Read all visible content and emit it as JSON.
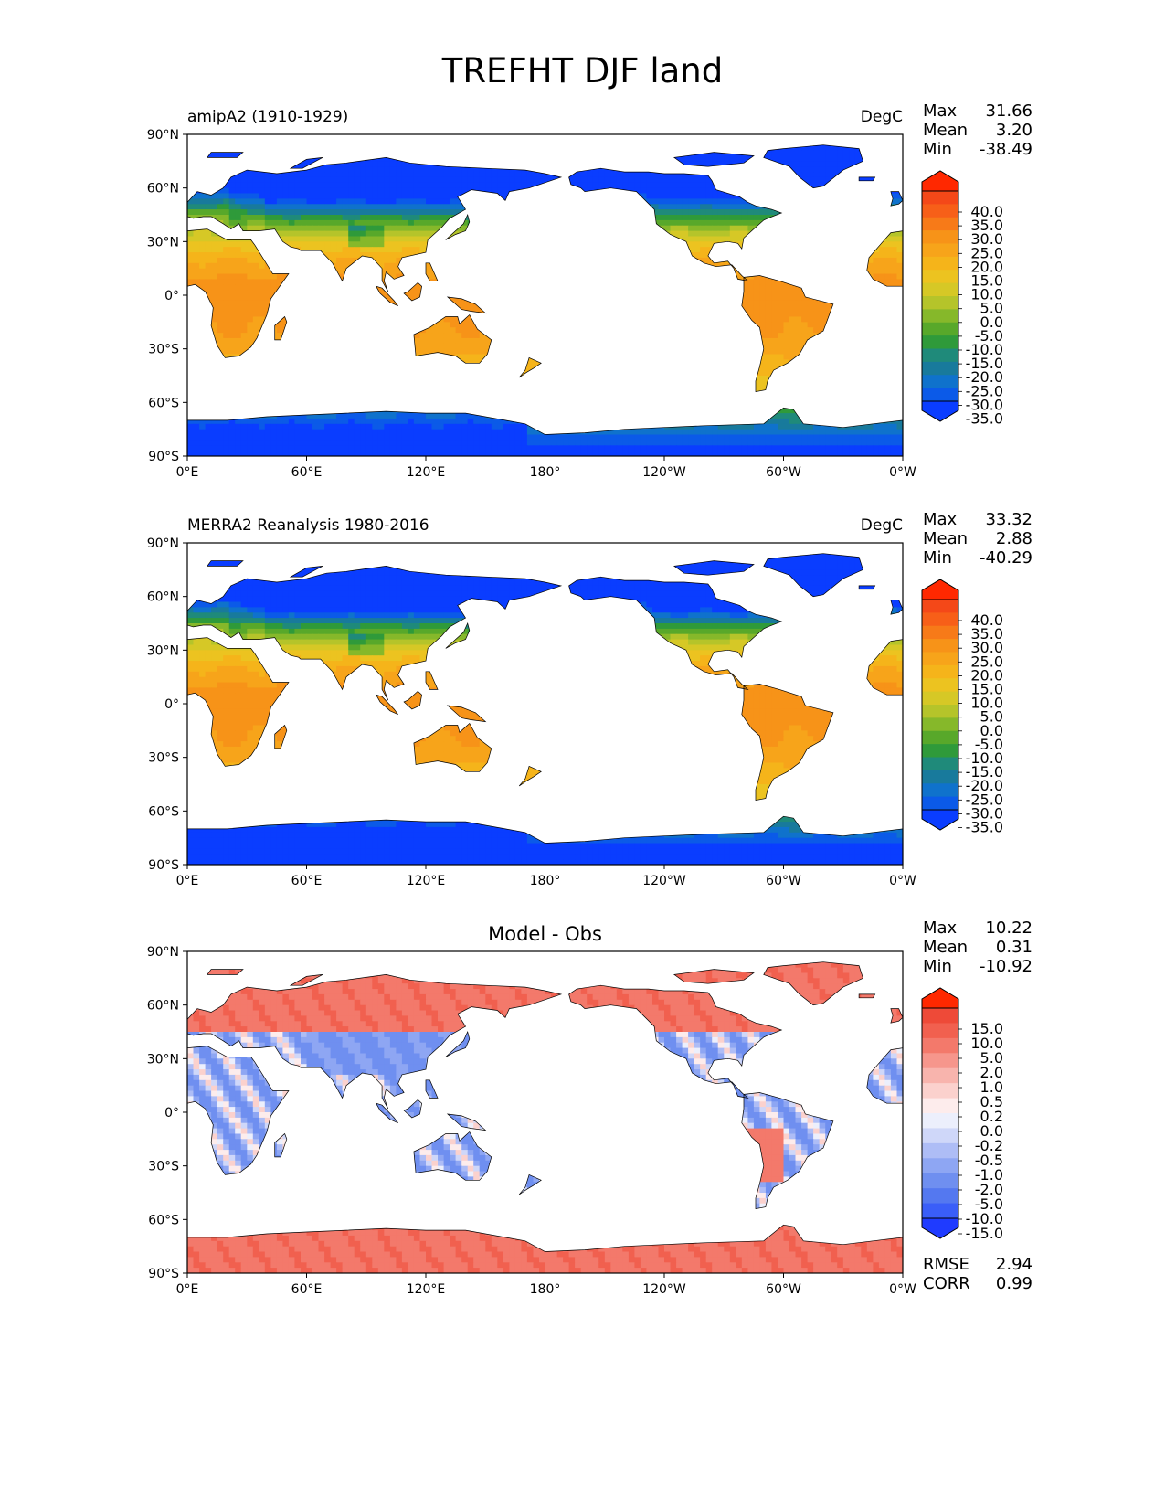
{
  "title": "TREFHT DJF land",
  "colors": {
    "ocean": "#ffffff",
    "coast": "#000000",
    "temperature_scale": [
      "#0a3dff",
      "#0b5ae8",
      "#0f72cc",
      "#187a9c",
      "#1f8a7a",
      "#2f9a3a",
      "#58a82a",
      "#86b82a",
      "#b5c42a",
      "#d6c826",
      "#ecc320",
      "#f5b41a",
      "#f7a41a",
      "#f79318",
      "#f77a18",
      "#f75f18",
      "#f44818",
      "#ff2800"
    ],
    "difference_scale": [
      "#1f3bff",
      "#3a5ef8",
      "#5478f0",
      "#6f8ff0",
      "#8ea6f3",
      "#aebdf6",
      "#cfd7f9",
      "#eceffc",
      "#fdecec",
      "#fbd1cd",
      "#f8b4ad",
      "#f6968c",
      "#f3796b",
      "#f1604f",
      "#ee4a38",
      "#ff2800"
    ]
  },
  "chart_data": [
    {
      "type": "heatmap",
      "panel": "model",
      "title": "",
      "left_label": "amipA2 (1910-1929)",
      "right_label": "DegC",
      "stats": [
        {
          "label": "Max",
          "value": "31.66"
        },
        {
          "label": "Mean",
          "value": "3.20"
        },
        {
          "label": "Min",
          "value": "-38.49"
        }
      ],
      "colorbar": {
        "ticks": [
          "40.0",
          "35.0",
          "30.0",
          "25.0",
          "20.0",
          "15.0",
          "10.0",
          "5.0",
          "0.0",
          "-5.0",
          "-10.0",
          "-15.0",
          "-20.0",
          "-25.0",
          "-30.0",
          "-35.0"
        ],
        "extend": "both"
      },
      "x_ticks": [
        "0°E",
        "60°E",
        "120°E",
        "180°",
        "120°W",
        "60°W",
        "0°W"
      ],
      "y_ticks": [
        "90°N",
        "60°N",
        "30°N",
        "0°",
        "30°S",
        "60°S",
        "90°S"
      ],
      "xlim": [
        0,
        360
      ],
      "ylim": [
        -90,
        90
      ],
      "footer_stats": []
    },
    {
      "type": "heatmap",
      "panel": "observations",
      "title": "",
      "left_label": "MERRA2 Reanalysis 1980-2016",
      "right_label": "DegC",
      "stats": [
        {
          "label": "Max",
          "value": "33.32"
        },
        {
          "label": "Mean",
          "value": "2.88"
        },
        {
          "label": "Min",
          "value": "-40.29"
        }
      ],
      "colorbar": {
        "ticks": [
          "40.0",
          "35.0",
          "30.0",
          "25.0",
          "20.0",
          "15.0",
          "10.0",
          "5.0",
          "0.0",
          "-5.0",
          "-10.0",
          "-15.0",
          "-20.0",
          "-25.0",
          "-30.0",
          "-35.0"
        ],
        "extend": "both"
      },
      "x_ticks": [
        "0°E",
        "60°E",
        "120°E",
        "180°",
        "120°W",
        "60°W",
        "0°W"
      ],
      "y_ticks": [
        "90°N",
        "60°N",
        "30°N",
        "0°",
        "30°S",
        "60°S",
        "90°S"
      ],
      "xlim": [
        0,
        360
      ],
      "ylim": [
        -90,
        90
      ],
      "footer_stats": []
    },
    {
      "type": "heatmap",
      "panel": "difference",
      "title": "Model - Obs",
      "left_label": "",
      "right_label": "",
      "stats": [
        {
          "label": "Max",
          "value": "10.22"
        },
        {
          "label": "Mean",
          "value": "0.31"
        },
        {
          "label": "Min",
          "value": "-10.92"
        }
      ],
      "colorbar": {
        "ticks": [
          "15.0",
          "10.0",
          "5.0",
          "2.0",
          "1.0",
          "0.5",
          "0.2",
          "0.0",
          "-0.2",
          "-0.5",
          "-1.0",
          "-2.0",
          "-5.0",
          "-10.0",
          "-15.0"
        ],
        "extend": "both"
      },
      "x_ticks": [
        "0°E",
        "60°E",
        "120°E",
        "180°",
        "120°W",
        "60°W",
        "0°W"
      ],
      "y_ticks": [
        "90°N",
        "60°N",
        "30°N",
        "0°",
        "30°S",
        "60°S",
        "90°S"
      ],
      "xlim": [
        0,
        360
      ],
      "ylim": [
        -90,
        90
      ],
      "footer_stats": [
        {
          "label": "RMSE",
          "value": "2.94"
        },
        {
          "label": "CORR",
          "value": "0.99"
        }
      ]
    }
  ]
}
